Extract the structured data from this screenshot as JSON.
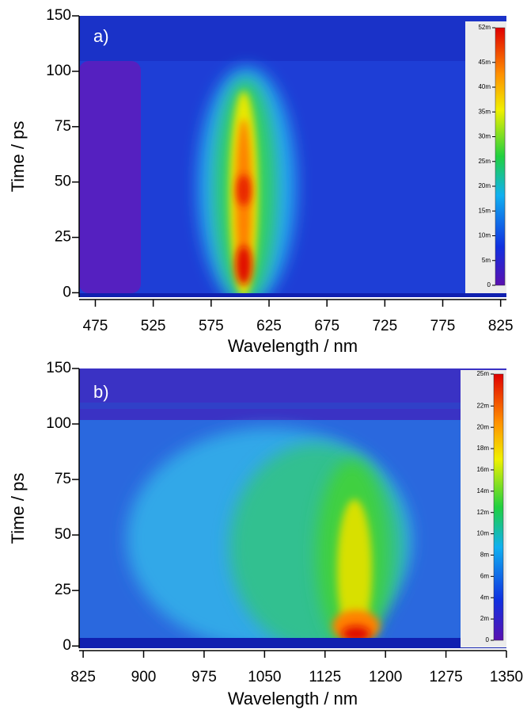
{
  "chart_data": [
    {
      "type": "heatmap",
      "label": "a)",
      "xlabel": "Wavelength / nm",
      "ylabel": "Time / ps",
      "yscale": "lin-log",
      "xlim": [
        461,
        830
      ],
      "xticks": [
        475,
        525,
        575,
        625,
        675,
        725,
        775,
        825
      ],
      "ylim": [
        -2,
        150
      ],
      "yticks": [
        0,
        25,
        50,
        75,
        100,
        150
      ],
      "clim": [
        0,
        0.052
      ],
      "cticks": [
        0,
        {
          "value": 0.005,
          "label": "5m"
        },
        {
          "value": 0.01,
          "label": "10m"
        },
        {
          "value": 0.015,
          "label": "15m"
        },
        {
          "value": 0.02,
          "label": "20m"
        },
        {
          "value": 0.025,
          "label": "25m"
        },
        {
          "value": 0.03,
          "label": "30m"
        },
        {
          "value": 0.035,
          "label": "35m"
        },
        {
          "value": 0.04,
          "label": "40m"
        },
        {
          "value": 0.045,
          "label": "45m"
        },
        {
          "value": 0.052,
          "label": "52m"
        }
      ]
    },
    {
      "type": "heatmap",
      "label": "b)",
      "xlabel": "Wavelength / nm",
      "ylabel": "Time / ps",
      "yscale": "lin-log",
      "xlim": [
        820,
        1350
      ],
      "xticks": [
        825,
        900,
        975,
        1050,
        1125,
        1200,
        1275,
        1350
      ],
      "ylim": [
        -1,
        150
      ],
      "yticks": [
        0,
        25,
        50,
        75,
        100,
        150
      ],
      "clim": [
        0,
        0.025
      ],
      "cticks": [
        0,
        {
          "value": 0.002,
          "label": "2m"
        },
        {
          "value": 0.004,
          "label": "4m"
        },
        {
          "value": 0.006,
          "label": "6m"
        },
        {
          "value": 0.008,
          "label": "8m"
        },
        {
          "value": 0.01,
          "label": "10m"
        },
        {
          "value": 0.012,
          "label": "12m"
        },
        {
          "value": 0.014,
          "label": "14m"
        },
        {
          "value": 0.016,
          "label": "16m"
        },
        {
          "value": 0.018,
          "label": "18m"
        },
        {
          "value": 0.02,
          "label": "20m"
        },
        {
          "value": 0.022,
          "label": "22m"
        },
        {
          "value": 0.025,
          "label": "25m"
        }
      ]
    }
  ]
}
